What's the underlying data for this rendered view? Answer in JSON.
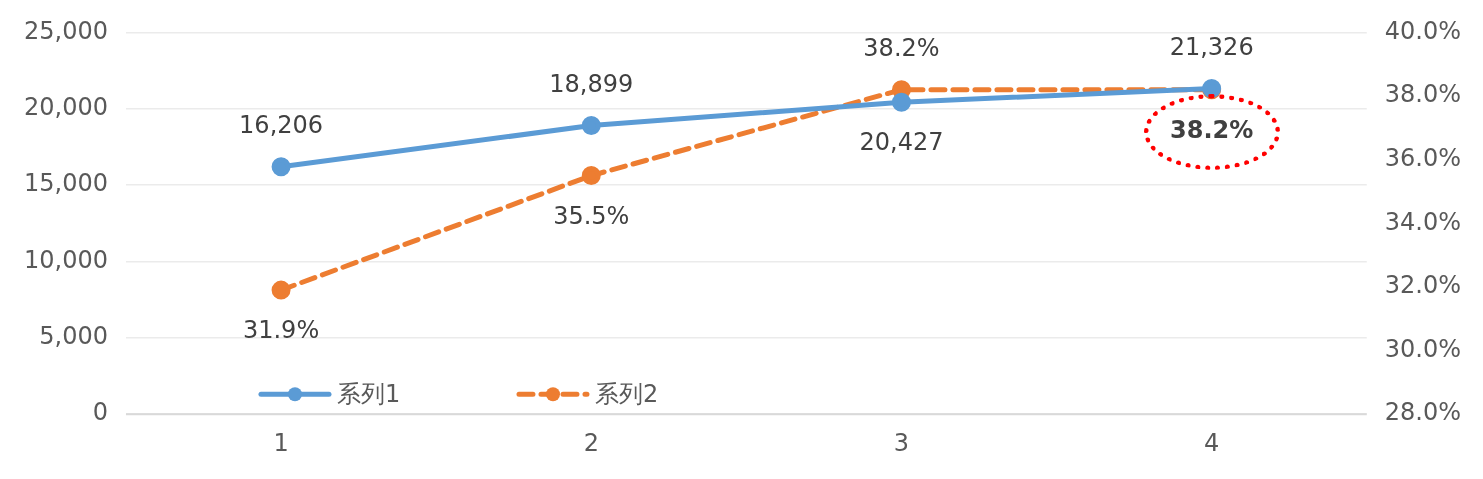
{
  "chart_data": {
    "type": "line",
    "categories": [
      "1",
      "2",
      "3",
      "4"
    ],
    "series": [
      {
        "name": "系列1",
        "color": "#5b9bd5",
        "values": [
          16206,
          18899,
          20427,
          21326
        ],
        "value_labels": [
          "16,206",
          "18,899",
          "20,427",
          "21,326"
        ]
      },
      {
        "name": "系列2",
        "color": "#ed7d31",
        "axis": "y2",
        "line_style": "dashed",
        "values": [
          31.9,
          35.5,
          38.2,
          38.2
        ],
        "value_labels": [
          "31.9%",
          "35.5%",
          "38.2%",
          "38.2%"
        ]
      }
    ],
    "ylim": [
      0,
      25000
    ],
    "yticks": [
      {
        "value": 0,
        "label": "0"
      },
      {
        "value": 5000,
        "label": "5,000"
      },
      {
        "value": 10000,
        "label": "10,000"
      },
      {
        "value": 15000,
        "label": "15,000"
      },
      {
        "value": 20000,
        "label": "20,000"
      },
      {
        "value": 25000,
        "label": "25,000"
      }
    ],
    "y2lim": [
      28,
      40
    ],
    "y2ticks": [
      {
        "value": 28,
        "label": "28.0%"
      },
      {
        "value": 30,
        "label": "30.0%"
      },
      {
        "value": 32,
        "label": "32.0%"
      },
      {
        "value": 34,
        "label": "34.0%"
      },
      {
        "value": 36,
        "label": "36.0%"
      },
      {
        "value": 38,
        "label": "38.0%"
      },
      {
        "value": 40,
        "label": "40.0%"
      }
    ],
    "grid": "y",
    "legend": "bottom left",
    "marker": "circle",
    "line_style": "solid"
  }
}
